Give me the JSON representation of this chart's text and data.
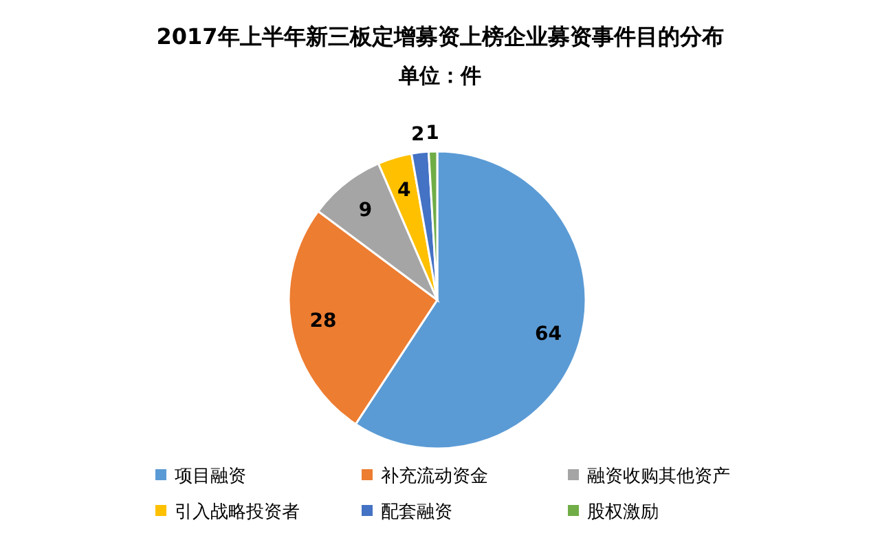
{
  "chart_data": {
    "type": "pie",
    "title": "2017年上半年新三板定增募资上榜企业募资事件目的分布",
    "subtitle": "单位：件",
    "categories": [
      "项目融资",
      "补充流动资金",
      "融资收购其他资产",
      "引入战略投资者",
      "配套融资",
      "股权激励"
    ],
    "values": [
      64,
      28,
      9,
      4,
      2,
      1
    ],
    "colors": [
      "#5b9bd5",
      "#ed7d31",
      "#a5a5a5",
      "#ffc000",
      "#4472c4",
      "#70ad47"
    ],
    "data_labels": true,
    "legend": "bottom"
  }
}
